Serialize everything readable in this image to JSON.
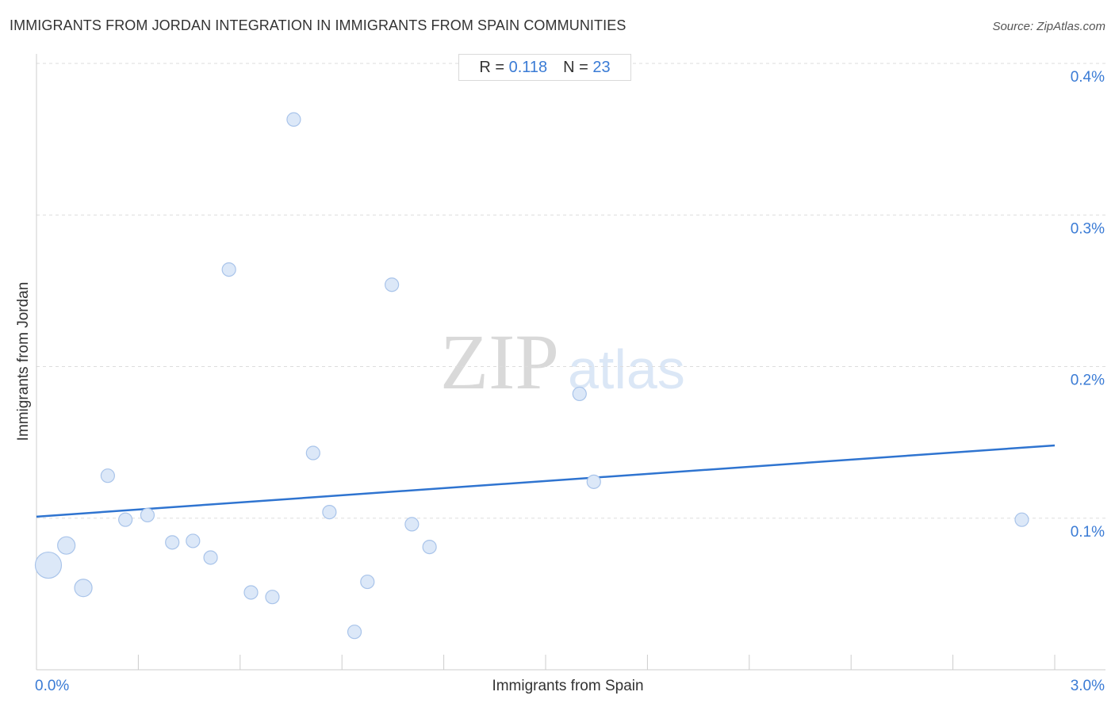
{
  "header": {
    "title": "IMMIGRANTS FROM JORDAN INTEGRATION IN IMMIGRANTS FROM SPAIN COMMUNITIES",
    "source": "Source: ZipAtlas.com"
  },
  "stats": {
    "r_label": "R =",
    "r_value": "0.118",
    "n_label": "N =",
    "n_value": "23"
  },
  "watermark": {
    "zip": "ZIP",
    "atlas": "atlas"
  },
  "colors": {
    "accent": "#3a7bd5",
    "point_fill": "#dce8f8",
    "point_stroke": "#a9c4ea",
    "trend": "#2f74d0"
  },
  "chart_data": {
    "type": "scatter",
    "title": "IMMIGRANTS FROM JORDAN INTEGRATION IN IMMIGRANTS FROM SPAIN COMMUNITIES",
    "xlabel": "Immigrants from Spain",
    "ylabel": "Immigrants from Jordan",
    "xlim": [
      0,
      3.0
    ],
    "ylim": [
      0,
      0.4
    ],
    "x_tick_labels": [
      {
        "value": 0,
        "label": "0.0%"
      },
      {
        "value": 3.0,
        "label": "3.0%"
      }
    ],
    "y_tick_labels": [
      {
        "value": 0.1,
        "label": "0.1%"
      },
      {
        "value": 0.2,
        "label": "0.2%"
      },
      {
        "value": 0.3,
        "label": "0.3%"
      },
      {
        "value": 0.4,
        "label": "0.4%"
      }
    ],
    "x_minor_ticks": [
      0.3,
      0.6,
      0.9,
      1.2,
      1.5,
      1.8,
      2.1,
      2.4,
      2.7,
      3.0
    ],
    "grid": true,
    "trendline": {
      "x": [
        0,
        3.0
      ],
      "y": [
        0.101,
        0.148
      ]
    },
    "points": [
      {
        "x": 0.035,
        "y": 0.069,
        "size": "large"
      },
      {
        "x": 0.088,
        "y": 0.082,
        "size": "medium"
      },
      {
        "x": 0.138,
        "y": 0.054,
        "size": "medium"
      },
      {
        "x": 0.21,
        "y": 0.128,
        "size": "small"
      },
      {
        "x": 0.262,
        "y": 0.099,
        "size": "small"
      },
      {
        "x": 0.327,
        "y": 0.102,
        "size": "small"
      },
      {
        "x": 0.4,
        "y": 0.084,
        "size": "small"
      },
      {
        "x": 0.461,
        "y": 0.085,
        "size": "small"
      },
      {
        "x": 0.513,
        "y": 0.074,
        "size": "small"
      },
      {
        "x": 0.567,
        "y": 0.264,
        "size": "small"
      },
      {
        "x": 0.632,
        "y": 0.051,
        "size": "small"
      },
      {
        "x": 0.695,
        "y": 0.048,
        "size": "small"
      },
      {
        "x": 0.758,
        "y": 0.363,
        "size": "small"
      },
      {
        "x": 0.815,
        "y": 0.143,
        "size": "small"
      },
      {
        "x": 0.863,
        "y": 0.104,
        "size": "small"
      },
      {
        "x": 0.937,
        "y": 0.025,
        "size": "small"
      },
      {
        "x": 0.975,
        "y": 0.058,
        "size": "small"
      },
      {
        "x": 1.047,
        "y": 0.254,
        "size": "small"
      },
      {
        "x": 1.106,
        "y": 0.096,
        "size": "small"
      },
      {
        "x": 1.158,
        "y": 0.081,
        "size": "small"
      },
      {
        "x": 1.6,
        "y": 0.182,
        "size": "small"
      },
      {
        "x": 1.642,
        "y": 0.124,
        "size": "small"
      },
      {
        "x": 2.903,
        "y": 0.099,
        "size": "small"
      }
    ]
  }
}
